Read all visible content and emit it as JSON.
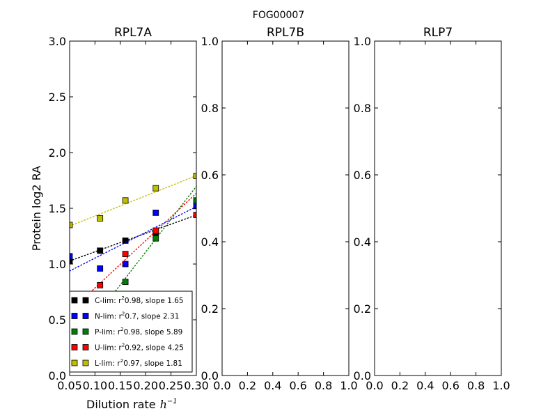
{
  "figure": {
    "suptitle": "FOG00007"
  },
  "chart_data": [
    {
      "type": "scatter",
      "title": "RPL7A",
      "xlabel": "Dilution rate",
      "xlabel_unit": "h",
      "xlabel_unit_exp": "−1",
      "ylabel": "Protein log2 RA",
      "xlim": [
        0.05,
        0.3
      ],
      "ylim": [
        0.0,
        3.0
      ],
      "xticks": [
        "0.05",
        "0.10",
        "0.15",
        "0.20",
        "0.25",
        "0.30"
      ],
      "yticks": [
        "0.0",
        "0.5",
        "1.0",
        "1.5",
        "2.0",
        "2.5",
        "3.0"
      ],
      "legend_position": "lower-left",
      "series": [
        {
          "name": "C-lim",
          "stat": "0.98, slope 1.65",
          "color": "#000000",
          "x": [
            0.05,
            0.11,
            0.16,
            0.22
          ],
          "y": [
            1.03,
            1.12,
            1.21,
            1.28
          ],
          "fit": {
            "slope": 1.65,
            "intercept": 0.945
          }
        },
        {
          "name": "N-lim",
          "stat": "0.7, slope 2.31",
          "color": "#0000ff",
          "x": [
            0.05,
            0.11,
            0.16,
            0.22,
            0.3
          ],
          "y": [
            1.07,
            0.96,
            1.0,
            1.46,
            1.52
          ],
          "fit": {
            "slope": 2.31,
            "intercept": 0.822
          }
        },
        {
          "name": "P-lim",
          "stat": "0.98, slope 5.89",
          "color": "#008000",
          "x": [
            0.11,
            0.16,
            0.22,
            0.3
          ],
          "y": [
            0.6,
            0.84,
            1.23,
            1.57
          ],
          "fit": {
            "slope": 5.89,
            "intercept": -0.07
          }
        },
        {
          "name": "U-lim",
          "stat": "0.92, slope 4.25",
          "color": "#ff0000",
          "x": [
            0.11,
            0.16,
            0.22,
            0.3
          ],
          "y": [
            0.81,
            1.09,
            1.3,
            1.44
          ],
          "fit": {
            "slope": 4.25,
            "intercept": 0.36
          }
        },
        {
          "name": "L-lim",
          "stat": "0.97, slope 1.81",
          "color": "#bfbf00",
          "x": [
            0.05,
            0.11,
            0.16,
            0.22,
            0.3
          ],
          "y": [
            1.35,
            1.41,
            1.57,
            1.68,
            1.79
          ],
          "fit": {
            "slope": 1.81,
            "intercept": 1.25
          }
        }
      ]
    },
    {
      "type": "scatter",
      "title": "RPL7B",
      "xlim": [
        0.0,
        1.0
      ],
      "ylim": [
        0.0,
        1.0
      ],
      "xticks": [
        "0.0",
        "0.2",
        "0.4",
        "0.6",
        "0.8",
        "1.0"
      ],
      "yticks": [
        "0.0",
        "0.2",
        "0.4",
        "0.6",
        "0.8",
        "1.0"
      ],
      "series": []
    },
    {
      "type": "scatter",
      "title": "RLP7",
      "xlim": [
        0.0,
        1.0
      ],
      "ylim": [
        0.0,
        1.0
      ],
      "xticks": [
        "0.0",
        "0.2",
        "0.4",
        "0.6",
        "0.8",
        "1.0"
      ],
      "yticks": [
        "0.0",
        "0.2",
        "0.4",
        "0.6",
        "0.8",
        "1.0"
      ],
      "series": []
    }
  ]
}
